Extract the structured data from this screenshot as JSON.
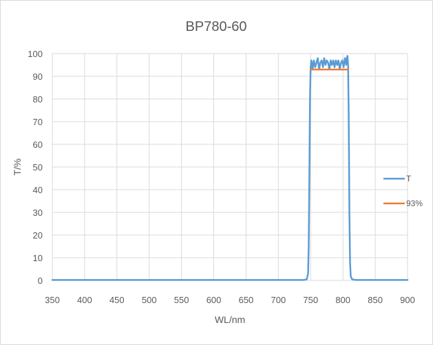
{
  "chart_data": {
    "type": "line",
    "title": "BP780-60",
    "xlabel": "WL/nm",
    "ylabel": "T/%",
    "xlim": [
      350,
      900
    ],
    "ylim": [
      0,
      100
    ],
    "x_ticks": [
      350,
      400,
      450,
      500,
      550,
      600,
      650,
      700,
      750,
      800,
      850,
      900
    ],
    "y_ticks": [
      0,
      10,
      20,
      30,
      40,
      50,
      60,
      70,
      80,
      90,
      100
    ],
    "grid": true,
    "legend_position": "right",
    "series": [
      {
        "name": "T",
        "color": "#5b9bd5",
        "points": [
          [
            350,
            0.2
          ],
          [
            400,
            0.2
          ],
          [
            450,
            0.2
          ],
          [
            500,
            0.2
          ],
          [
            550,
            0.2
          ],
          [
            600,
            0.2
          ],
          [
            650,
            0.2
          ],
          [
            700,
            0.2
          ],
          [
            740,
            0.2
          ],
          [
            744,
            0.5
          ],
          [
            746,
            3
          ],
          [
            747,
            15
          ],
          [
            748,
            45
          ],
          [
            749,
            80
          ],
          [
            750,
            94
          ],
          [
            751,
            97
          ],
          [
            752,
            96
          ],
          [
            753,
            93
          ],
          [
            755,
            97
          ],
          [
            757,
            94
          ],
          [
            759,
            96
          ],
          [
            761,
            98
          ],
          [
            763,
            93
          ],
          [
            765,
            96
          ],
          [
            767,
            97
          ],
          [
            769,
            94
          ],
          [
            771,
            98
          ],
          [
            773,
            95
          ],
          [
            775,
            97
          ],
          [
            777,
            96
          ],
          [
            779,
            93
          ],
          [
            781,
            97
          ],
          [
            783,
            95
          ],
          [
            785,
            97
          ],
          [
            787,
            94
          ],
          [
            789,
            97
          ],
          [
            791,
            95
          ],
          [
            793,
            97
          ],
          [
            795,
            93
          ],
          [
            797,
            96
          ],
          [
            799,
            97
          ],
          [
            801,
            94
          ],
          [
            803,
            98
          ],
          [
            805,
            95
          ],
          [
            806,
            98
          ],
          [
            807,
            99
          ],
          [
            808,
            95
          ],
          [
            809,
            70
          ],
          [
            810,
            30
          ],
          [
            811,
            8
          ],
          [
            812,
            2
          ],
          [
            814,
            0.5
          ],
          [
            820,
            0.2
          ],
          [
            850,
            0.2
          ],
          [
            900,
            0.2
          ]
        ]
      },
      {
        "name": "93%",
        "color": "#ed7d31",
        "points": [
          [
            750,
            93
          ],
          [
            808,
            93
          ]
        ]
      }
    ]
  }
}
